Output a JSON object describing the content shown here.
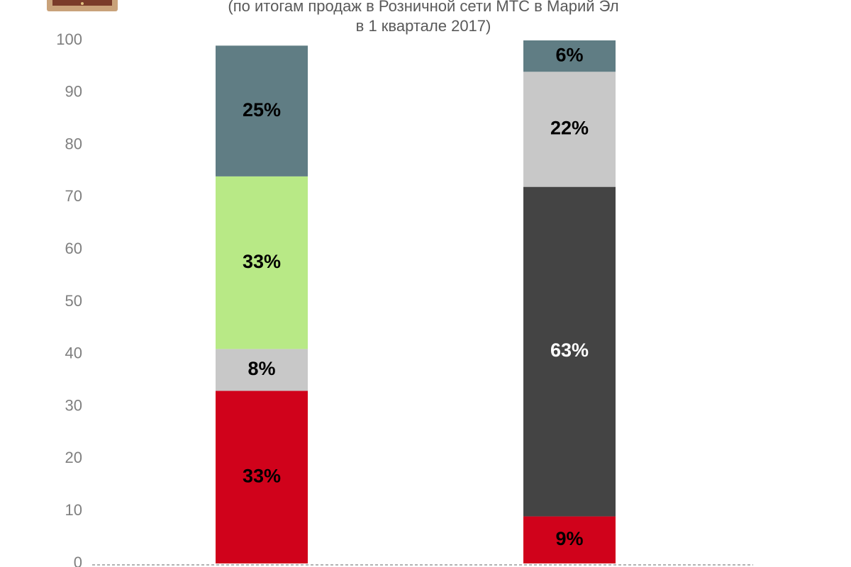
{
  "chart_data": {
    "type": "stacked_bar",
    "subtitle": [
      "(по итогам продаж в Розничной сети МТС в Марий Эл",
      "в 1 квартале 2017)"
    ],
    "categories": [
      null,
      null
    ],
    "series": [
      {
        "color": "#d0021b",
        "label_color": "#000000",
        "values": [
          33,
          9
        ],
        "value_labels": [
          "33%",
          "9%"
        ]
      },
      {
        "color": "#c8c8c8",
        "label_color": "#000000",
        "values": [
          8,
          null
        ],
        "value_labels": [
          "8%",
          null
        ]
      },
      {
        "color": "#b8e986",
        "label_color": "#000000",
        "values": [
          33,
          null
        ],
        "value_labels": [
          "33%",
          null
        ]
      },
      {
        "color": "#444444",
        "label_color": "#ffffff",
        "values": [
          null,
          63
        ],
        "value_labels": [
          null,
          "63%"
        ]
      },
      {
        "color": "#c8c8c8",
        "label_color": "#000000",
        "values": [
          null,
          22
        ],
        "value_labels": [
          null,
          "22%"
        ]
      },
      {
        "color": "#607d84",
        "label_color": "#000000",
        "values": [
          25,
          6
        ],
        "value_labels": [
          "25%",
          "6%"
        ]
      }
    ],
    "ylim": [
      0,
      100
    ],
    "yticks": [
      0,
      10,
      20,
      30,
      40,
      50,
      60,
      70,
      80,
      90,
      100
    ]
  }
}
